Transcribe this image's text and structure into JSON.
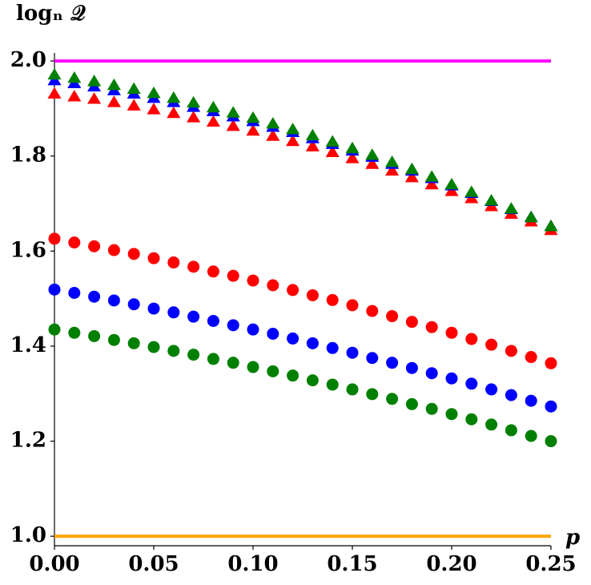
{
  "chart_data": {
    "type": "scatter",
    "ylabel": "logₙ 𝒬",
    "xlabel": "p",
    "x": [
      0,
      0.01,
      0.02,
      0.03,
      0.04,
      0.05,
      0.06,
      0.07,
      0.08,
      0.09,
      0.1,
      0.11,
      0.12,
      0.13,
      0.14,
      0.15,
      0.16,
      0.17,
      0.18,
      0.19,
      0.2,
      0.21,
      0.22,
      0.23,
      0.24,
      0.25
    ],
    "series": [
      {
        "color": "#ff0000",
        "marker": "triangle",
        "values": [
          1.93,
          1.924,
          1.919,
          1.912,
          1.905,
          1.897,
          1.889,
          1.88,
          1.871,
          1.862,
          1.852,
          1.841,
          1.83,
          1.819,
          1.807,
          1.794,
          1.782,
          1.768,
          1.754,
          1.739,
          1.725,
          1.71,
          1.693,
          1.677,
          1.661,
          1.643
        ]
      },
      {
        "color": "#0000ff",
        "marker": "triangle",
        "values": [
          1.958,
          1.952,
          1.945,
          1.937,
          1.93,
          1.921,
          1.912,
          1.902,
          1.893,
          1.882,
          1.872,
          1.86,
          1.849,
          1.836,
          1.824,
          1.81,
          1.797,
          1.782,
          1.768,
          1.752,
          1.737,
          1.721,
          1.704,
          1.687,
          1.67,
          1.651
        ]
      },
      {
        "color": "#008000",
        "marker": "triangle",
        "values": [
          1.97,
          1.963,
          1.956,
          1.948,
          1.94,
          1.931,
          1.921,
          1.911,
          1.901,
          1.89,
          1.879,
          1.867,
          1.855,
          1.842,
          1.829,
          1.815,
          1.801,
          1.786,
          1.771,
          1.755,
          1.739,
          1.723,
          1.705,
          1.688,
          1.67,
          1.651
        ]
      },
      {
        "color": "#ff0000",
        "marker": "circle",
        "values": [
          1.626,
          1.618,
          1.61,
          1.602,
          1.594,
          1.585,
          1.576,
          1.567,
          1.557,
          1.548,
          1.538,
          1.528,
          1.518,
          1.507,
          1.497,
          1.486,
          1.474,
          1.463,
          1.451,
          1.44,
          1.428,
          1.415,
          1.403,
          1.39,
          1.377,
          1.364
        ]
      },
      {
        "color": "#0000ff",
        "marker": "circle",
        "values": [
          1.519,
          1.512,
          1.504,
          1.496,
          1.488,
          1.479,
          1.471,
          1.462,
          1.453,
          1.444,
          1.435,
          1.426,
          1.416,
          1.406,
          1.396,
          1.386,
          1.375,
          1.365,
          1.354,
          1.343,
          1.332,
          1.321,
          1.309,
          1.297,
          1.285,
          1.273
        ]
      },
      {
        "color": "#008000",
        "marker": "circle",
        "values": [
          1.435,
          1.428,
          1.421,
          1.413,
          1.406,
          1.398,
          1.39,
          1.382,
          1.373,
          1.365,
          1.356,
          1.347,
          1.338,
          1.328,
          1.319,
          1.309,
          1.299,
          1.289,
          1.278,
          1.268,
          1.257,
          1.246,
          1.235,
          1.223,
          1.211,
          1.2
        ]
      }
    ],
    "hlines": [
      {
        "value": 2.0,
        "color": "#ff00ff"
      },
      {
        "value": 1.0,
        "color": "#ffa500"
      }
    ],
    "xlim": [
      0,
      0.25
    ],
    "ylim": [
      0.98,
      2.017
    ],
    "xticks": [
      {
        "value": 0,
        "label": "0.00"
      },
      {
        "value": 0.05,
        "label": "0.05"
      },
      {
        "value": 0.1,
        "label": "0.10"
      },
      {
        "value": 0.15,
        "label": "0.15"
      },
      {
        "value": 0.2,
        "label": "0.20"
      },
      {
        "value": 0.25,
        "label": "0.25"
      }
    ],
    "yticks": [
      {
        "value": 1.0,
        "label": "1.0"
      },
      {
        "value": 1.2,
        "label": "1.2"
      },
      {
        "value": 1.4,
        "label": "1.4"
      },
      {
        "value": 1.6,
        "label": "1.6"
      },
      {
        "value": 1.8,
        "label": "1.8"
      },
      {
        "value": 2.0,
        "label": "2.0"
      }
    ],
    "grid": false
  }
}
